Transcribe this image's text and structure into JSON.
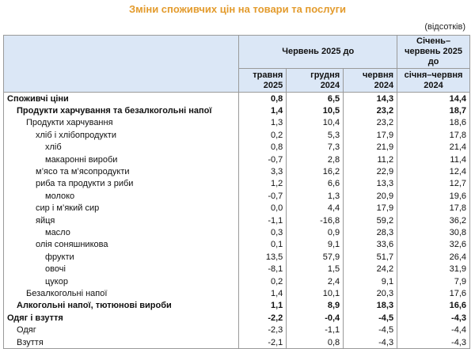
{
  "title": "Зміни споживчих цін на товари та послуги",
  "unit_note": "(відсотків)",
  "header": {
    "group": "Червень 2025 до",
    "columns": [
      "травня 2025",
      "грудня 2024",
      "червня 2024"
    ],
    "last_top": "Січень–червень 2025 до",
    "last_bottom": "січня–червня 2024"
  },
  "table": {
    "rows": [
      {
        "label": "Споживчі ціни",
        "values": [
          "0,8",
          "6,5",
          "14,3",
          "14,4"
        ],
        "bold": true,
        "indent": 0
      },
      {
        "label": "Продукти харчування та безалкогольні напої",
        "values": [
          "1,4",
          "10,5",
          "23,2",
          "18,7"
        ],
        "bold": true,
        "indent": 1
      },
      {
        "label": "Продукти харчування",
        "values": [
          "1,3",
          "10,4",
          "23,2",
          "18,6"
        ],
        "bold": false,
        "indent": 2
      },
      {
        "label": "хліб і хлібопродукти",
        "values": [
          "0,2",
          "5,3",
          "17,9",
          "17,8"
        ],
        "bold": false,
        "indent": 3
      },
      {
        "label": "хліб",
        "values": [
          "0,8",
          "7,3",
          "21,9",
          "21,4"
        ],
        "bold": false,
        "indent": 4
      },
      {
        "label": "макаронні вироби",
        "values": [
          "-0,7",
          "2,8",
          "11,2",
          "11,4"
        ],
        "bold": false,
        "indent": 4
      },
      {
        "label": "м’ясо та м’ясопродукти",
        "values": [
          "3,3",
          "16,2",
          "22,9",
          "12,4"
        ],
        "bold": false,
        "indent": 3
      },
      {
        "label": "риба та продукти з риби",
        "values": [
          "1,2",
          "6,6",
          "13,3",
          "12,7"
        ],
        "bold": false,
        "indent": 3
      },
      {
        "label": "молоко",
        "values": [
          "-0,7",
          "1,3",
          "20,9",
          "19,6"
        ],
        "bold": false,
        "indent": 4
      },
      {
        "label": "сир і м’який сир",
        "values": [
          "0,0",
          "4,4",
          "17,9",
          "17,8"
        ],
        "bold": false,
        "indent": 3
      },
      {
        "label": "яйця",
        "values": [
          "-1,1",
          "-16,8",
          "59,2",
          "36,2"
        ],
        "bold": false,
        "indent": 3
      },
      {
        "label": "масло",
        "values": [
          "0,3",
          "0,9",
          "28,3",
          "30,8"
        ],
        "bold": false,
        "indent": 4
      },
      {
        "label": "олія соняшникова",
        "values": [
          "0,1",
          "9,1",
          "33,6",
          "32,6"
        ],
        "bold": false,
        "indent": 3
      },
      {
        "label": "фрукти",
        "values": [
          "13,5",
          "57,9",
          "51,7",
          "26,4"
        ],
        "bold": false,
        "indent": 4
      },
      {
        "label": "овочі",
        "values": [
          "-8,1",
          "1,5",
          "24,2",
          "31,9"
        ],
        "bold": false,
        "indent": 4
      },
      {
        "label": "цукор",
        "values": [
          "0,2",
          "2,4",
          "9,1",
          "7,9"
        ],
        "bold": false,
        "indent": 4
      },
      {
        "label": "Безалкогольні напої",
        "values": [
          "1,4",
          "10,1",
          "20,3",
          "17,6"
        ],
        "bold": false,
        "indent": 2
      },
      {
        "label": "Алкогольні напої, тютюнові вироби",
        "values": [
          "1,1",
          "8,9",
          "18,3",
          "16,6"
        ],
        "bold": true,
        "indent": 1
      },
      {
        "label": "Одяг і взуття",
        "values": [
          "-2,2",
          "-0,4",
          "-4,5",
          "-4,3"
        ],
        "bold": true,
        "indent": 0
      },
      {
        "label": "Одяг",
        "values": [
          "-2,3",
          "-1,1",
          "-4,5",
          "-4,4"
        ],
        "bold": false,
        "indent": 1
      },
      {
        "label": "Взуття",
        "values": [
          "-2,1",
          "0,8",
          "-4,3",
          "-4,3"
        ],
        "bold": false,
        "indent": 1
      }
    ]
  }
}
